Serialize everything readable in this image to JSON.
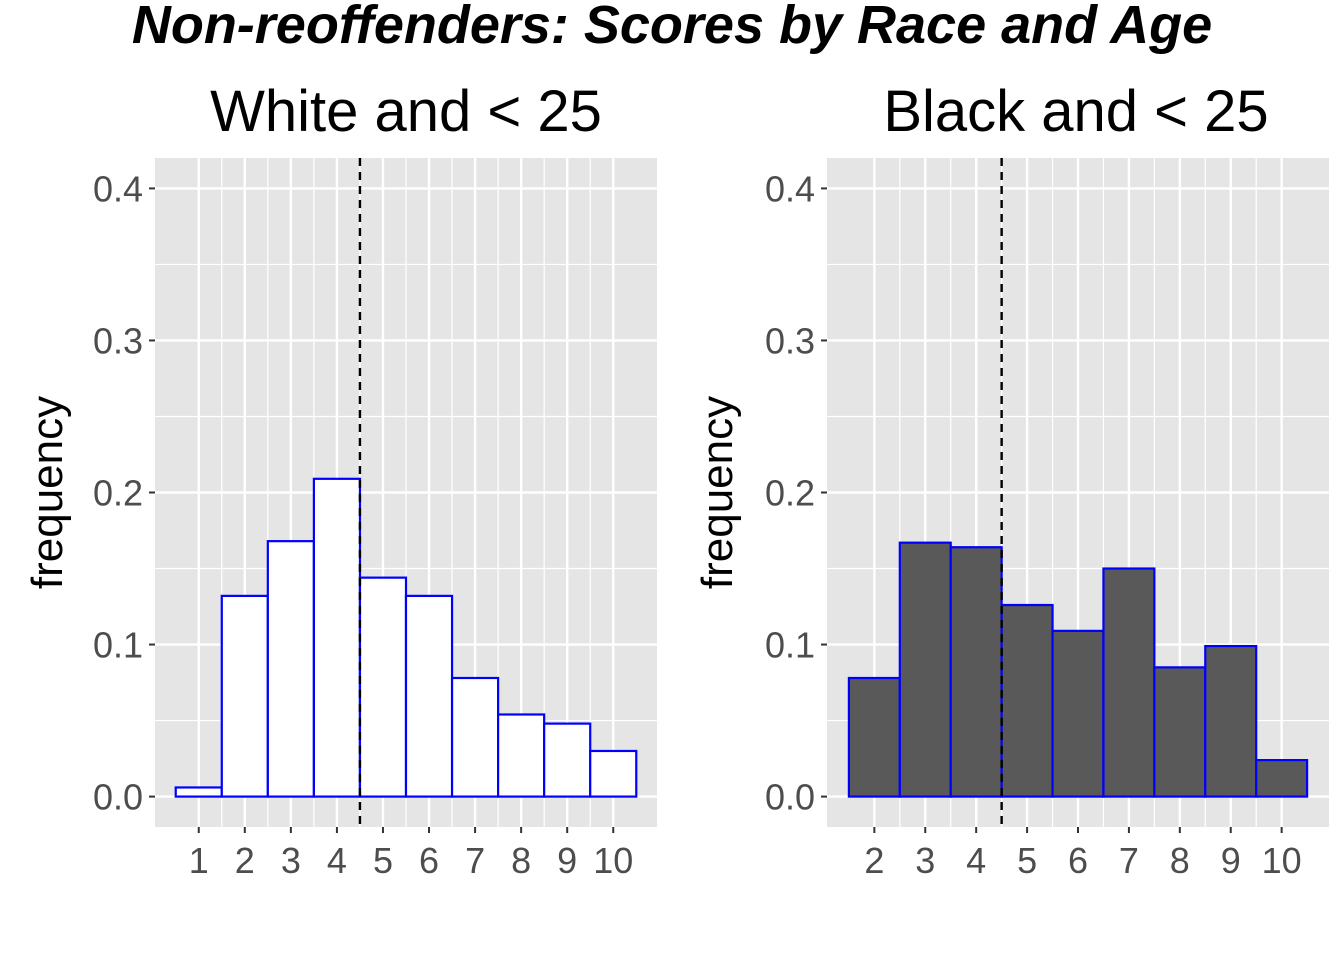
{
  "title": "Non-reoffenders: Scores by Race and Age",
  "chart_data": [
    {
      "type": "bar",
      "title": "White and < 25",
      "xlabel": "",
      "ylabel": "frequency",
      "categories": [
        "1",
        "2",
        "3",
        "4",
        "5",
        "6",
        "7",
        "8",
        "9",
        "10"
      ],
      "x": [
        1,
        2,
        3,
        4,
        5,
        6,
        7,
        8,
        9,
        10
      ],
      "values": [
        0.006,
        0.132,
        0.168,
        0.209,
        0.144,
        0.132,
        0.078,
        0.054,
        0.048,
        0.03
      ],
      "xlim": [
        0.05,
        10.95
      ],
      "ylim": [
        -0.02,
        0.42
      ],
      "yticks": [
        0.0,
        0.1,
        0.2,
        0.3,
        0.4
      ],
      "ytick_labels": [
        "0.0",
        "0.1",
        "0.2",
        "0.3",
        "0.4"
      ],
      "threshold": 4.5,
      "bar_fill": "#ffffff",
      "bar_stroke": "#0000ff",
      "panel_background": "#e5e5e5",
      "grid": true
    },
    {
      "type": "bar",
      "title": "Black and <  25",
      "xlabel": "",
      "ylabel": "frequency",
      "categories": [
        "2",
        "3",
        "4",
        "5",
        "6",
        "7",
        "8",
        "9",
        "10"
      ],
      "x": [
        2,
        3,
        4,
        5,
        6,
        7,
        8,
        9,
        10
      ],
      "values": [
        0.078,
        0.167,
        0.164,
        0.126,
        0.109,
        0.15,
        0.085,
        0.099,
        0.024
      ],
      "xlim": [
        1.07,
        10.93
      ],
      "ylim": [
        -0.02,
        0.42
      ],
      "yticks": [
        0.0,
        0.1,
        0.2,
        0.3,
        0.4
      ],
      "ytick_labels": [
        "0.0",
        "0.1",
        "0.2",
        "0.3",
        "0.4"
      ],
      "threshold": 4.5,
      "bar_fill": "#595959",
      "bar_stroke": "#0000ff",
      "panel_background": "#e5e5e5",
      "grid": true
    }
  ]
}
